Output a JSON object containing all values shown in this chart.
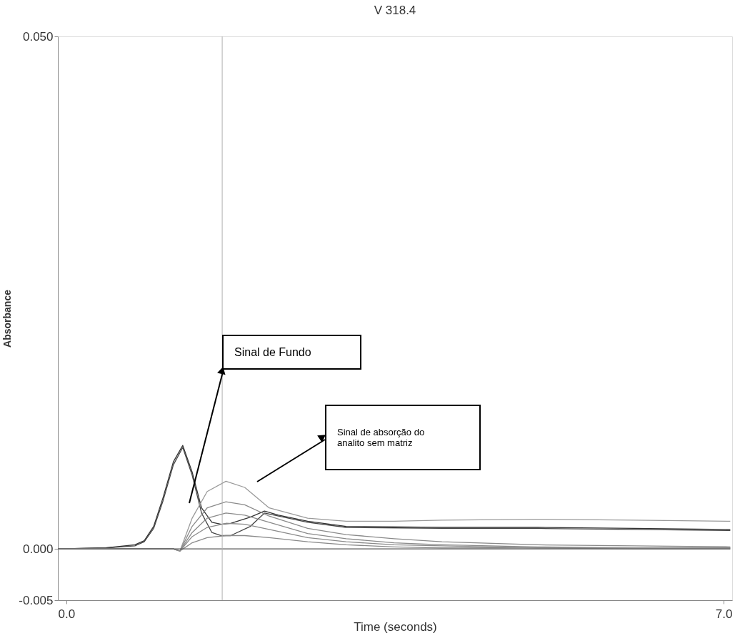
{
  "chart_data": {
    "type": "line",
    "title": "V 318.4",
    "xlabel": "Time (seconds)",
    "ylabel": "Absorbance",
    "xlim": [
      -0.09,
      7.09
    ],
    "xticks": [
      {
        "value": 0,
        "label": "0.0"
      },
      {
        "value": 7,
        "label": "7.0"
      }
    ],
    "ylim": [
      -0.005,
      0.05
    ],
    "yticks": [
      {
        "value": 0.05,
        "label": "0.050"
      },
      {
        "value": 0,
        "label": "0.000"
      },
      {
        "value": -0.005,
        "label": "-0.005"
      }
    ],
    "grid": false,
    "legend": false,
    "marker": "none",
    "line_style": "solid",
    "ref_lines": [
      {
        "axis": "x",
        "value": 1.66,
        "color": "#b0b0b0"
      }
    ],
    "annotations": [
      "Sinal de Fundo",
      "Sinal de absorção do\nanalito sem matriz"
    ],
    "series": [
      {
        "color": "#333333",
        "x": [
          -0.09,
          0.42,
          0.73,
          0.83,
          0.93,
          1.03,
          1.14,
          1.24,
          1.34,
          1.44,
          1.55,
          1.65,
          1.75,
          1.96,
          2.11,
          2.26,
          2.57,
          2.98,
          4.0,
          5.02,
          6.05,
          7.07
        ],
        "values": [
          0,
          0.0001,
          0.0004,
          0.0008,
          0.0022,
          0.005,
          0.0085,
          0.0101,
          0.0075,
          0.004,
          0.0026,
          0.0024,
          0.0025,
          0.0031,
          0.0037,
          0.0033,
          0.0027,
          0.0022,
          0.0021,
          0.0021,
          0.002,
          0.0019
        ]
      },
      {
        "color": "#444444",
        "x": [
          -0.09,
          0.42,
          0.73,
          0.83,
          0.93,
          1.03,
          1.14,
          1.24,
          1.34,
          1.44,
          1.55,
          1.65,
          1.75,
          1.96,
          2.11,
          2.26,
          2.57,
          2.98,
          4.0,
          5.02,
          6.05,
          7.07
        ],
        "values": [
          0,
          0.0001,
          0.0003,
          0.0007,
          0.002,
          0.0047,
          0.0082,
          0.0099,
          0.0072,
          0.0035,
          0.0016,
          0.0013,
          0.0013,
          0.0022,
          0.0035,
          0.0032,
          0.0026,
          0.0021,
          0.002,
          0.002,
          0.0019,
          0.0018
        ]
      },
      {
        "color": "#9a9a9a",
        "x": [
          -0.09,
          1.14,
          1.21,
          1.34,
          1.5,
          1.7,
          1.9,
          2.16,
          2.57,
          2.98,
          3.49,
          4.0,
          5.02,
          6.05,
          7.07
        ],
        "values": [
          0,
          0,
          -0.0002,
          0.003,
          0.0056,
          0.0066,
          0.006,
          0.004,
          0.003,
          0.0027,
          0.0027,
          0.0028,
          0.0029,
          0.0028,
          0.0027
        ]
      },
      {
        "color": "#8a8a8a",
        "x": [
          -0.09,
          1.14,
          1.21,
          1.34,
          1.5,
          1.7,
          1.9,
          2.16,
          2.57,
          2.98,
          3.49,
          4.0,
          5.02,
          6.05,
          7.07
        ],
        "values": [
          0,
          0,
          -0.0002,
          0.0022,
          0.004,
          0.0046,
          0.0043,
          0.0032,
          0.002,
          0.0014,
          0.001,
          0.0007,
          0.0004,
          0.0003,
          0.0002
        ]
      },
      {
        "color": "#8a8a8a",
        "x": [
          -0.09,
          1.14,
          1.21,
          1.34,
          1.5,
          1.7,
          1.9,
          2.16,
          2.57,
          2.98,
          3.49,
          4.0,
          5.02,
          6.05,
          7.07
        ],
        "values": [
          0,
          0,
          -0.0002,
          0.0016,
          0.003,
          0.0035,
          0.0033,
          0.0026,
          0.0015,
          0.001,
          0.0006,
          0.0004,
          0.0002,
          0.0001,
          0.0001
        ]
      },
      {
        "color": "#8a8a8a",
        "x": [
          -0.09,
          1.14,
          1.21,
          1.34,
          1.5,
          1.7,
          1.9,
          2.16,
          2.57,
          2.98,
          3.49,
          4.0,
          5.02,
          6.05,
          7.07
        ],
        "values": [
          0,
          0,
          -0.0002,
          0.0012,
          0.0021,
          0.0025,
          0.0024,
          0.0019,
          0.0011,
          0.0007,
          0.0004,
          0.0003,
          0.0001,
          0.0001,
          0.0001
        ]
      },
      {
        "color": "#8a8a8a",
        "x": [
          -0.09,
          1.14,
          1.21,
          1.34,
          1.5,
          1.7,
          1.9,
          2.16,
          2.57,
          2.98,
          3.49,
          4.0,
          5.02,
          6.05,
          7.07
        ],
        "values": [
          0,
          0,
          -0.0002,
          0.0006,
          0.0011,
          0.0013,
          0.0013,
          0.0011,
          0.0007,
          0.0004,
          0.0002,
          0.0001,
          0.0001,
          0,
          0
        ]
      },
      {
        "color": "#555555",
        "x": [
          -0.09,
          7.07
        ],
        "values": [
          0,
          0
        ]
      }
    ]
  }
}
